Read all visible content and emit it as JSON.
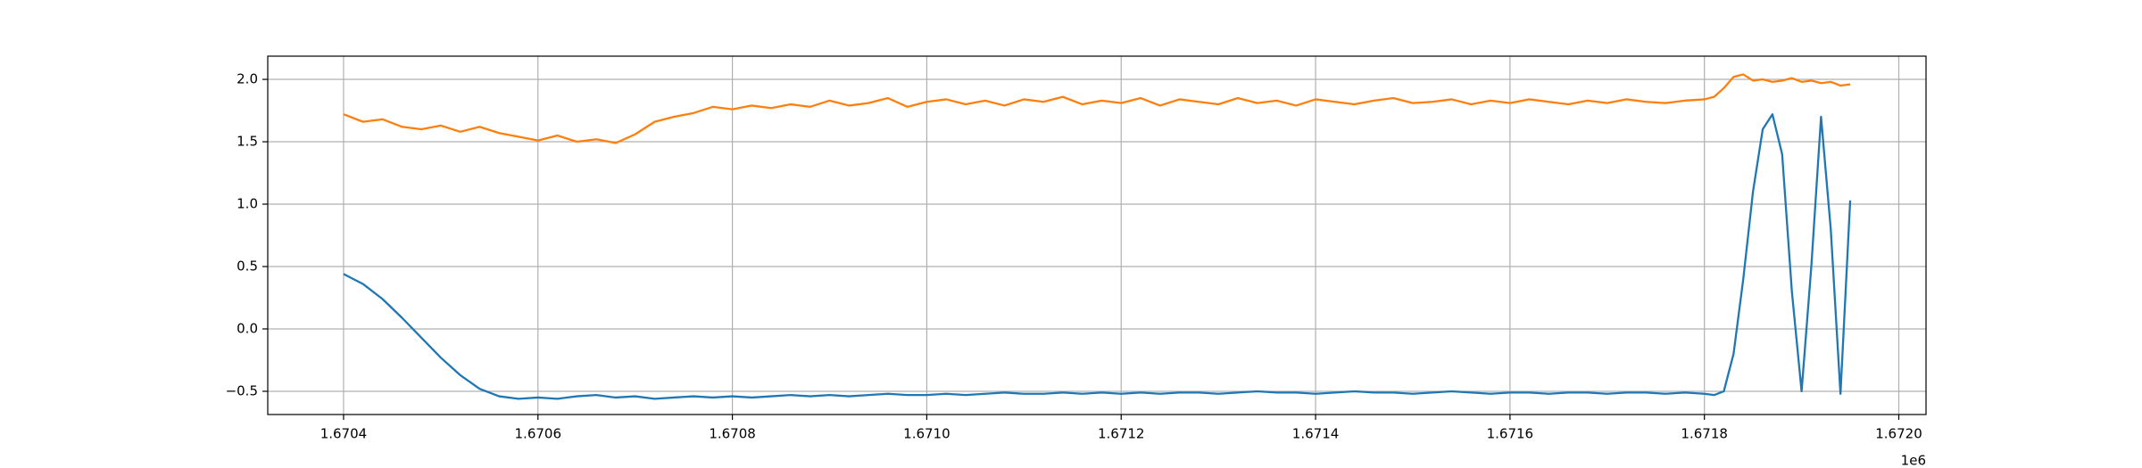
{
  "chart_data": {
    "type": "line",
    "x": [
      1670400,
      1670420,
      1670440,
      1670460,
      1670480,
      1670500,
      1670520,
      1670540,
      1670560,
      1670580,
      1670600,
      1670620,
      1670640,
      1670660,
      1670680,
      1670700,
      1670720,
      1670740,
      1670760,
      1670780,
      1670800,
      1670820,
      1670840,
      1670860,
      1670880,
      1670900,
      1670920,
      1670940,
      1670960,
      1670980,
      1671000,
      1671020,
      1671040,
      1671060,
      1671080,
      1671100,
      1671120,
      1671140,
      1671160,
      1671180,
      1671200,
      1671220,
      1671240,
      1671260,
      1671280,
      1671300,
      1671320,
      1671340,
      1671360,
      1671380,
      1671400,
      1671420,
      1671440,
      1671460,
      1671480,
      1671500,
      1671520,
      1671540,
      1671560,
      1671580,
      1671600,
      1671620,
      1671640,
      1671660,
      1671680,
      1671700,
      1671720,
      1671740,
      1671760,
      1671780,
      1671800,
      1671810,
      1671820,
      1671830,
      1671840,
      1671850,
      1671860,
      1671870,
      1671880,
      1671890,
      1671900,
      1671910,
      1671920,
      1671930,
      1671940,
      1671950
    ],
    "series": [
      {
        "color": "#1f77b4",
        "values": [
          0.44,
          0.36,
          0.24,
          0.09,
          -0.07,
          -0.23,
          -0.37,
          -0.48,
          -0.54,
          -0.56,
          -0.55,
          -0.56,
          -0.54,
          -0.53,
          -0.55,
          -0.54,
          -0.56,
          -0.55,
          -0.54,
          -0.55,
          -0.54,
          -0.55,
          -0.54,
          -0.53,
          -0.54,
          -0.53,
          -0.54,
          -0.53,
          -0.52,
          -0.53,
          -0.53,
          -0.52,
          -0.53,
          -0.52,
          -0.51,
          -0.52,
          -0.52,
          -0.51,
          -0.52,
          -0.51,
          -0.52,
          -0.51,
          -0.52,
          -0.51,
          -0.51,
          -0.52,
          -0.51,
          -0.5,
          -0.51,
          -0.51,
          -0.52,
          -0.51,
          -0.5,
          -0.51,
          -0.51,
          -0.52,
          -0.51,
          -0.5,
          -0.51,
          -0.52,
          -0.51,
          -0.51,
          -0.52,
          -0.51,
          -0.51,
          -0.52,
          -0.51,
          -0.51,
          -0.52,
          -0.51,
          -0.52,
          -0.53,
          -0.5,
          -0.2,
          0.4,
          1.1,
          1.6,
          1.72,
          1.4,
          0.3,
          -0.5,
          0.5,
          1.7,
          0.8,
          -0.52,
          1.03
        ]
      },
      {
        "color": "#ff7f0e",
        "values": [
          1.72,
          1.66,
          1.68,
          1.62,
          1.6,
          1.63,
          1.58,
          1.62,
          1.57,
          1.54,
          1.51,
          1.55,
          1.5,
          1.52,
          1.49,
          1.56,
          1.66,
          1.7,
          1.73,
          1.78,
          1.76,
          1.79,
          1.77,
          1.8,
          1.78,
          1.83,
          1.79,
          1.81,
          1.85,
          1.78,
          1.82,
          1.84,
          1.8,
          1.83,
          1.79,
          1.84,
          1.82,
          1.86,
          1.8,
          1.83,
          1.81,
          1.85,
          1.79,
          1.84,
          1.82,
          1.8,
          1.85,
          1.81,
          1.83,
          1.79,
          1.84,
          1.82,
          1.8,
          1.83,
          1.85,
          1.81,
          1.82,
          1.84,
          1.8,
          1.83,
          1.81,
          1.84,
          1.82,
          1.8,
          1.83,
          1.81,
          1.84,
          1.82,
          1.81,
          1.83,
          1.84,
          1.86,
          1.93,
          2.02,
          2.04,
          1.99,
          2.0,
          1.98,
          1.99,
          2.01,
          1.98,
          1.99,
          1.97,
          1.98,
          1.95,
          1.96
        ]
      }
    ],
    "xlim": [
      1670322,
      1672028
    ],
    "xticks": [
      {
        "value": 1670400,
        "label": "1.6704"
      },
      {
        "value": 1670600,
        "label": "1.6706"
      },
      {
        "value": 1670800,
        "label": "1.6708"
      },
      {
        "value": 1671000,
        "label": "1.6710"
      },
      {
        "value": 1671200,
        "label": "1.6712"
      },
      {
        "value": 1671400,
        "label": "1.6714"
      },
      {
        "value": 1671600,
        "label": "1.6716"
      },
      {
        "value": 1671800,
        "label": "1.6718"
      },
      {
        "value": 1672000,
        "label": "1.6720"
      }
    ],
    "x_offset_label": "1e6",
    "ylim": [
      -0.686,
      2.186
    ],
    "yticks": [
      {
        "value": -0.5,
        "label": "−0.5"
      },
      {
        "value": 0,
        "label": "0.0"
      },
      0.5,
      {
        "value": 1,
        "label": "1.0"
      },
      1.5,
      {
        "value": 2,
        "label": "2.0"
      }
    ],
    "grid": true
  }
}
